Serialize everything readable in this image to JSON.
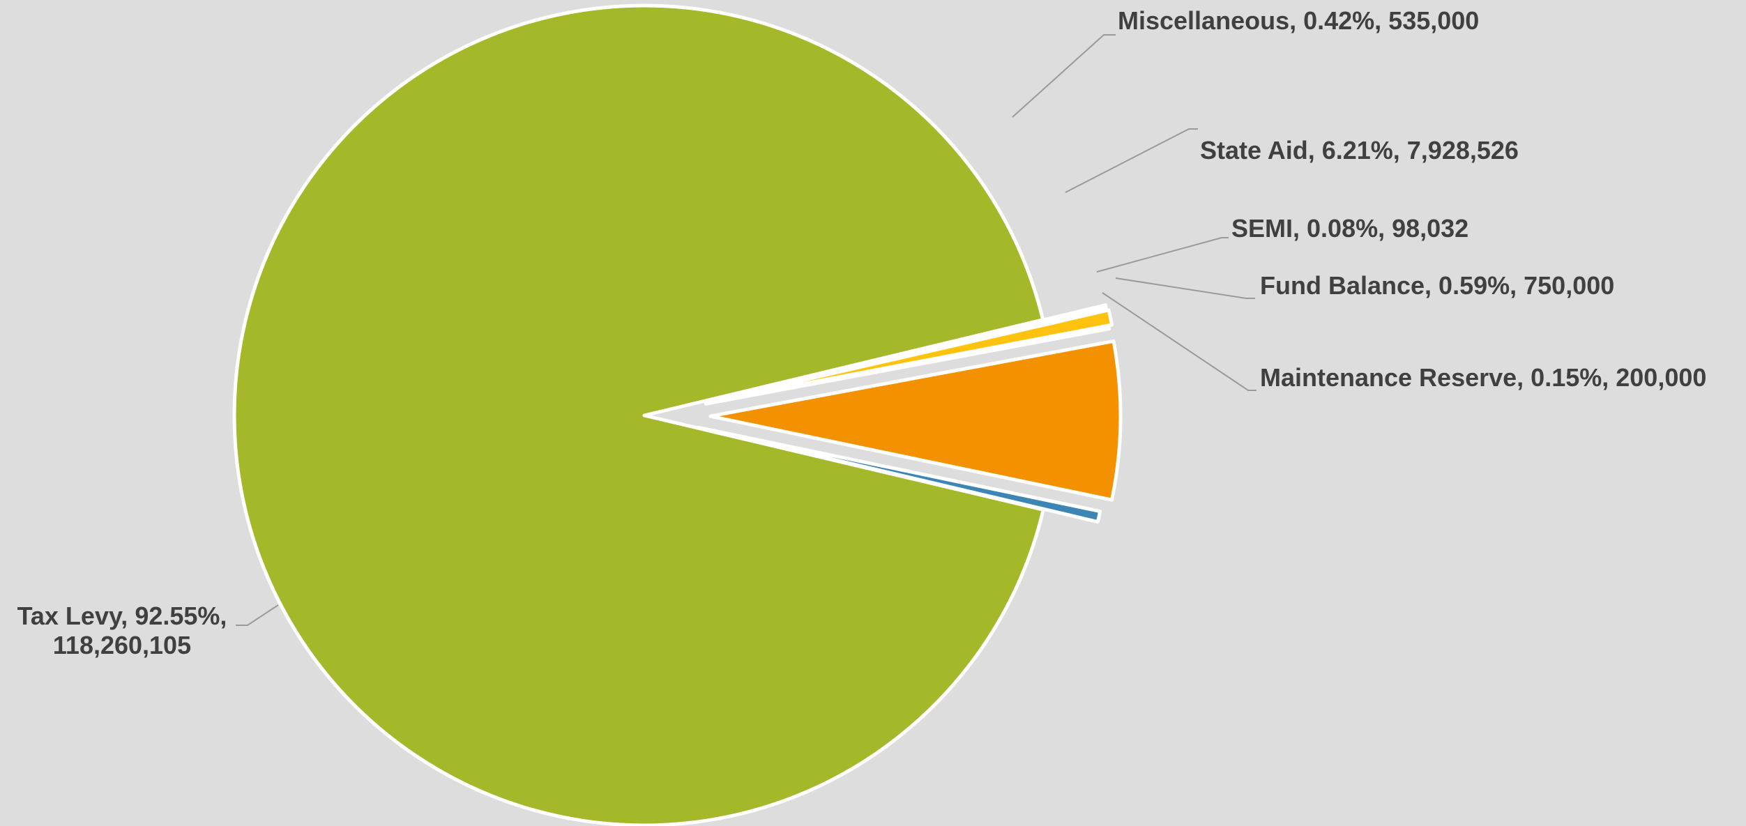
{
  "chart_data": {
    "type": "pie",
    "title": "",
    "slices": [
      {
        "name": "Tax Levy",
        "percent": "92.55%",
        "value": "118,260,105",
        "amount": 118260105,
        "color": "#a5b82a"
      },
      {
        "name": "Miscellaneous",
        "percent": "0.42%",
        "value": "535,000",
        "amount": 535000,
        "color": "#3b86b4"
      },
      {
        "name": "State Aid",
        "percent": "6.21%",
        "value": "7,928,526",
        "amount": 7928526,
        "color": "#f49100"
      },
      {
        "name": "SEMI",
        "percent": "0.08%",
        "value": "98,032",
        "amount": 98032,
        "color": "#c2c2c2"
      },
      {
        "name": "Fund Balance",
        "percent": "0.59%",
        "value": "750,000",
        "amount": 750000,
        "color": "#ffc20e"
      },
      {
        "name": "Maintenance Reserve",
        "percent": "0.15%",
        "value": "200,000",
        "amount": 200000,
        "color": "#ffffff"
      }
    ],
    "labels": {
      "tax_levy_line1": "Tax Levy, 92.55%,",
      "tax_levy_line2": "118,260,105",
      "miscellaneous": "Miscellaneous, 0.42%, 535,000",
      "state_aid": "State Aid, 6.21%, 7,928,526",
      "semi": "SEMI, 0.08%, 98,032",
      "fund_balance": "Fund Balance, 0.59%, 750,000",
      "maintenance_reserve": "Maintenance Reserve, 0.15%, 200,000"
    },
    "legend": "none",
    "background": "#dddddd"
  }
}
